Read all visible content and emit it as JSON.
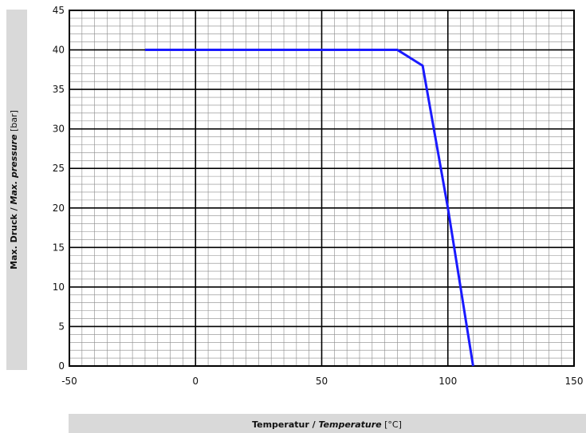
{
  "chart_data": {
    "type": "line",
    "xlabel": {
      "a": "Temperatur",
      "sep": " / ",
      "b": "Temperature",
      "unit": " [°C]"
    },
    "ylabel": {
      "a": "Max. Druck",
      "sep": " / ",
      "b": "Max. pressure",
      "unit": " [bar]"
    },
    "xlim": [
      -50,
      150
    ],
    "ylim": [
      0,
      45
    ],
    "x_major_ticks": [
      -50,
      0,
      50,
      100,
      150
    ],
    "y_major_ticks": [
      0,
      5,
      10,
      15,
      20,
      25,
      30,
      35,
      40,
      45
    ],
    "x_tick_labels": [
      "-50",
      "0",
      "50",
      "100",
      "150"
    ],
    "y_tick_labels": [
      "0",
      "5",
      "10",
      "15",
      "20",
      "25",
      "30",
      "35",
      "40",
      "45"
    ],
    "grid": true,
    "series": [
      {
        "color": "#1a1aff",
        "x": [
          -20,
          80,
          90,
          100,
          110
        ],
        "y": [
          40,
          40,
          38,
          20,
          0
        ]
      }
    ]
  }
}
